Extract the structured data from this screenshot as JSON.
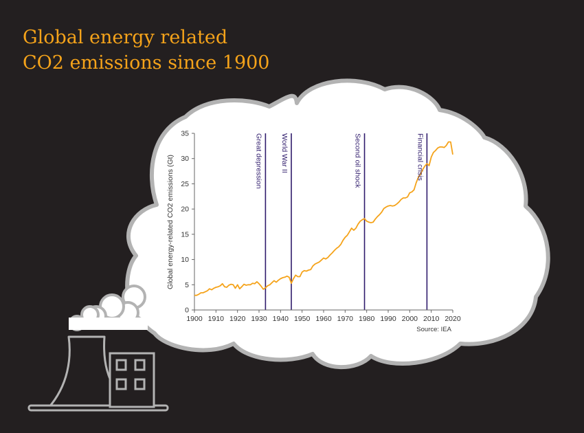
{
  "page": {
    "title_line1": "Global energy related",
    "title_line2": "CO2 emissions since 1900"
  },
  "colors": {
    "background": "#231f20",
    "title": "#f5a31a",
    "line": "#f5a31a",
    "event_line": "#2e1a6b",
    "cloud_fill": "#ffffff",
    "cloud_stroke": "#b3b3b3",
    "axis_text": "#333333"
  },
  "illustration": {
    "icons": [
      "cooling-tower-icon",
      "factory-building-icon",
      "steam-cloud-icon",
      "thought-cloud"
    ]
  },
  "chart_data": {
    "type": "line",
    "title": "",
    "xlabel": "",
    "ylabel": "Global energy-related CO2 emissions (Gt)",
    "xlim": [
      1900,
      2020
    ],
    "ylim": [
      0,
      35
    ],
    "xticks": [
      1900,
      1910,
      1920,
      1930,
      1940,
      1950,
      1960,
      1970,
      1980,
      1990,
      2000,
      2010,
      2020
    ],
    "yticks": [
      0,
      5,
      10,
      15,
      20,
      25,
      30,
      35
    ],
    "grid": false,
    "source": "Source: IEA",
    "series": [
      {
        "name": "",
        "x": [
          1900,
          1901,
          1902,
          1903,
          1904,
          1905,
          1906,
          1907,
          1908,
          1909,
          1910,
          1911,
          1912,
          1913,
          1914,
          1915,
          1916,
          1917,
          1918,
          1919,
          1920,
          1921,
          1922,
          1923,
          1924,
          1925,
          1926,
          1927,
          1928,
          1929,
          1930,
          1931,
          1932,
          1933,
          1934,
          1935,
          1936,
          1937,
          1938,
          1939,
          1940,
          1941,
          1942,
          1943,
          1944,
          1945,
          1946,
          1947,
          1948,
          1949,
          1950,
          1951,
          1952,
          1953,
          1954,
          1955,
          1956,
          1957,
          1958,
          1959,
          1960,
          1961,
          1962,
          1963,
          1964,
          1965,
          1966,
          1967,
          1968,
          1969,
          1970,
          1971,
          1972,
          1973,
          1974,
          1975,
          1976,
          1977,
          1978,
          1979,
          1980,
          1981,
          1982,
          1983,
          1984,
          1985,
          1986,
          1987,
          1988,
          1989,
          1990,
          1991,
          1992,
          1993,
          1994,
          1995,
          1996,
          1997,
          1998,
          1999,
          2000,
          2001,
          2002,
          2003,
          2004,
          2005,
          2006,
          2007,
          2008,
          2009,
          2010,
          2011,
          2012,
          2013,
          2014,
          2015,
          2016,
          2017,
          2018,
          2019,
          2020
        ],
        "values": [
          2.9,
          2.9,
          3.1,
          3.4,
          3.4,
          3.6,
          3.8,
          4.2,
          4.0,
          4.3,
          4.5,
          4.6,
          4.8,
          5.2,
          4.6,
          4.5,
          4.9,
          5.1,
          5.0,
          4.3,
          5.0,
          4.2,
          4.6,
          5.1,
          4.9,
          5.0,
          5.0,
          5.3,
          5.2,
          5.6,
          5.2,
          4.7,
          4.1,
          4.4,
          4.8,
          5.0,
          5.4,
          5.8,
          5.5,
          5.9,
          6.2,
          6.4,
          6.5,
          6.7,
          6.5,
          5.3,
          6.2,
          6.9,
          6.6,
          6.6,
          7.5,
          7.8,
          7.7,
          7.9,
          8.0,
          8.7,
          9.1,
          9.3,
          9.5,
          9.9,
          10.3,
          10.1,
          10.4,
          10.9,
          11.3,
          11.8,
          12.2,
          12.5,
          13.0,
          13.8,
          14.4,
          14.8,
          15.5,
          16.2,
          15.8,
          16.2,
          17.0,
          17.6,
          17.9,
          18.1,
          17.6,
          17.4,
          17.3,
          17.4,
          18.0,
          18.5,
          18.9,
          19.4,
          20.1,
          20.4,
          20.6,
          20.7,
          20.6,
          20.7,
          21.0,
          21.4,
          21.9,
          22.2,
          22.2,
          22.4,
          23.2,
          23.4,
          23.8,
          25.2,
          26.3,
          26.9,
          27.8,
          28.5,
          29.0,
          28.6,
          30.3,
          31.2,
          31.6,
          32.1,
          32.3,
          32.3,
          32.2,
          32.6,
          33.3,
          33.3,
          30.8
        ]
      }
    ],
    "annotations": [
      {
        "x": 1933,
        "label": "Great depression"
      },
      {
        "x": 1945,
        "label": "World War II"
      },
      {
        "x": 1979,
        "label": "Second oil shock"
      },
      {
        "x": 2008,
        "label": "Financial crisis"
      }
    ]
  }
}
